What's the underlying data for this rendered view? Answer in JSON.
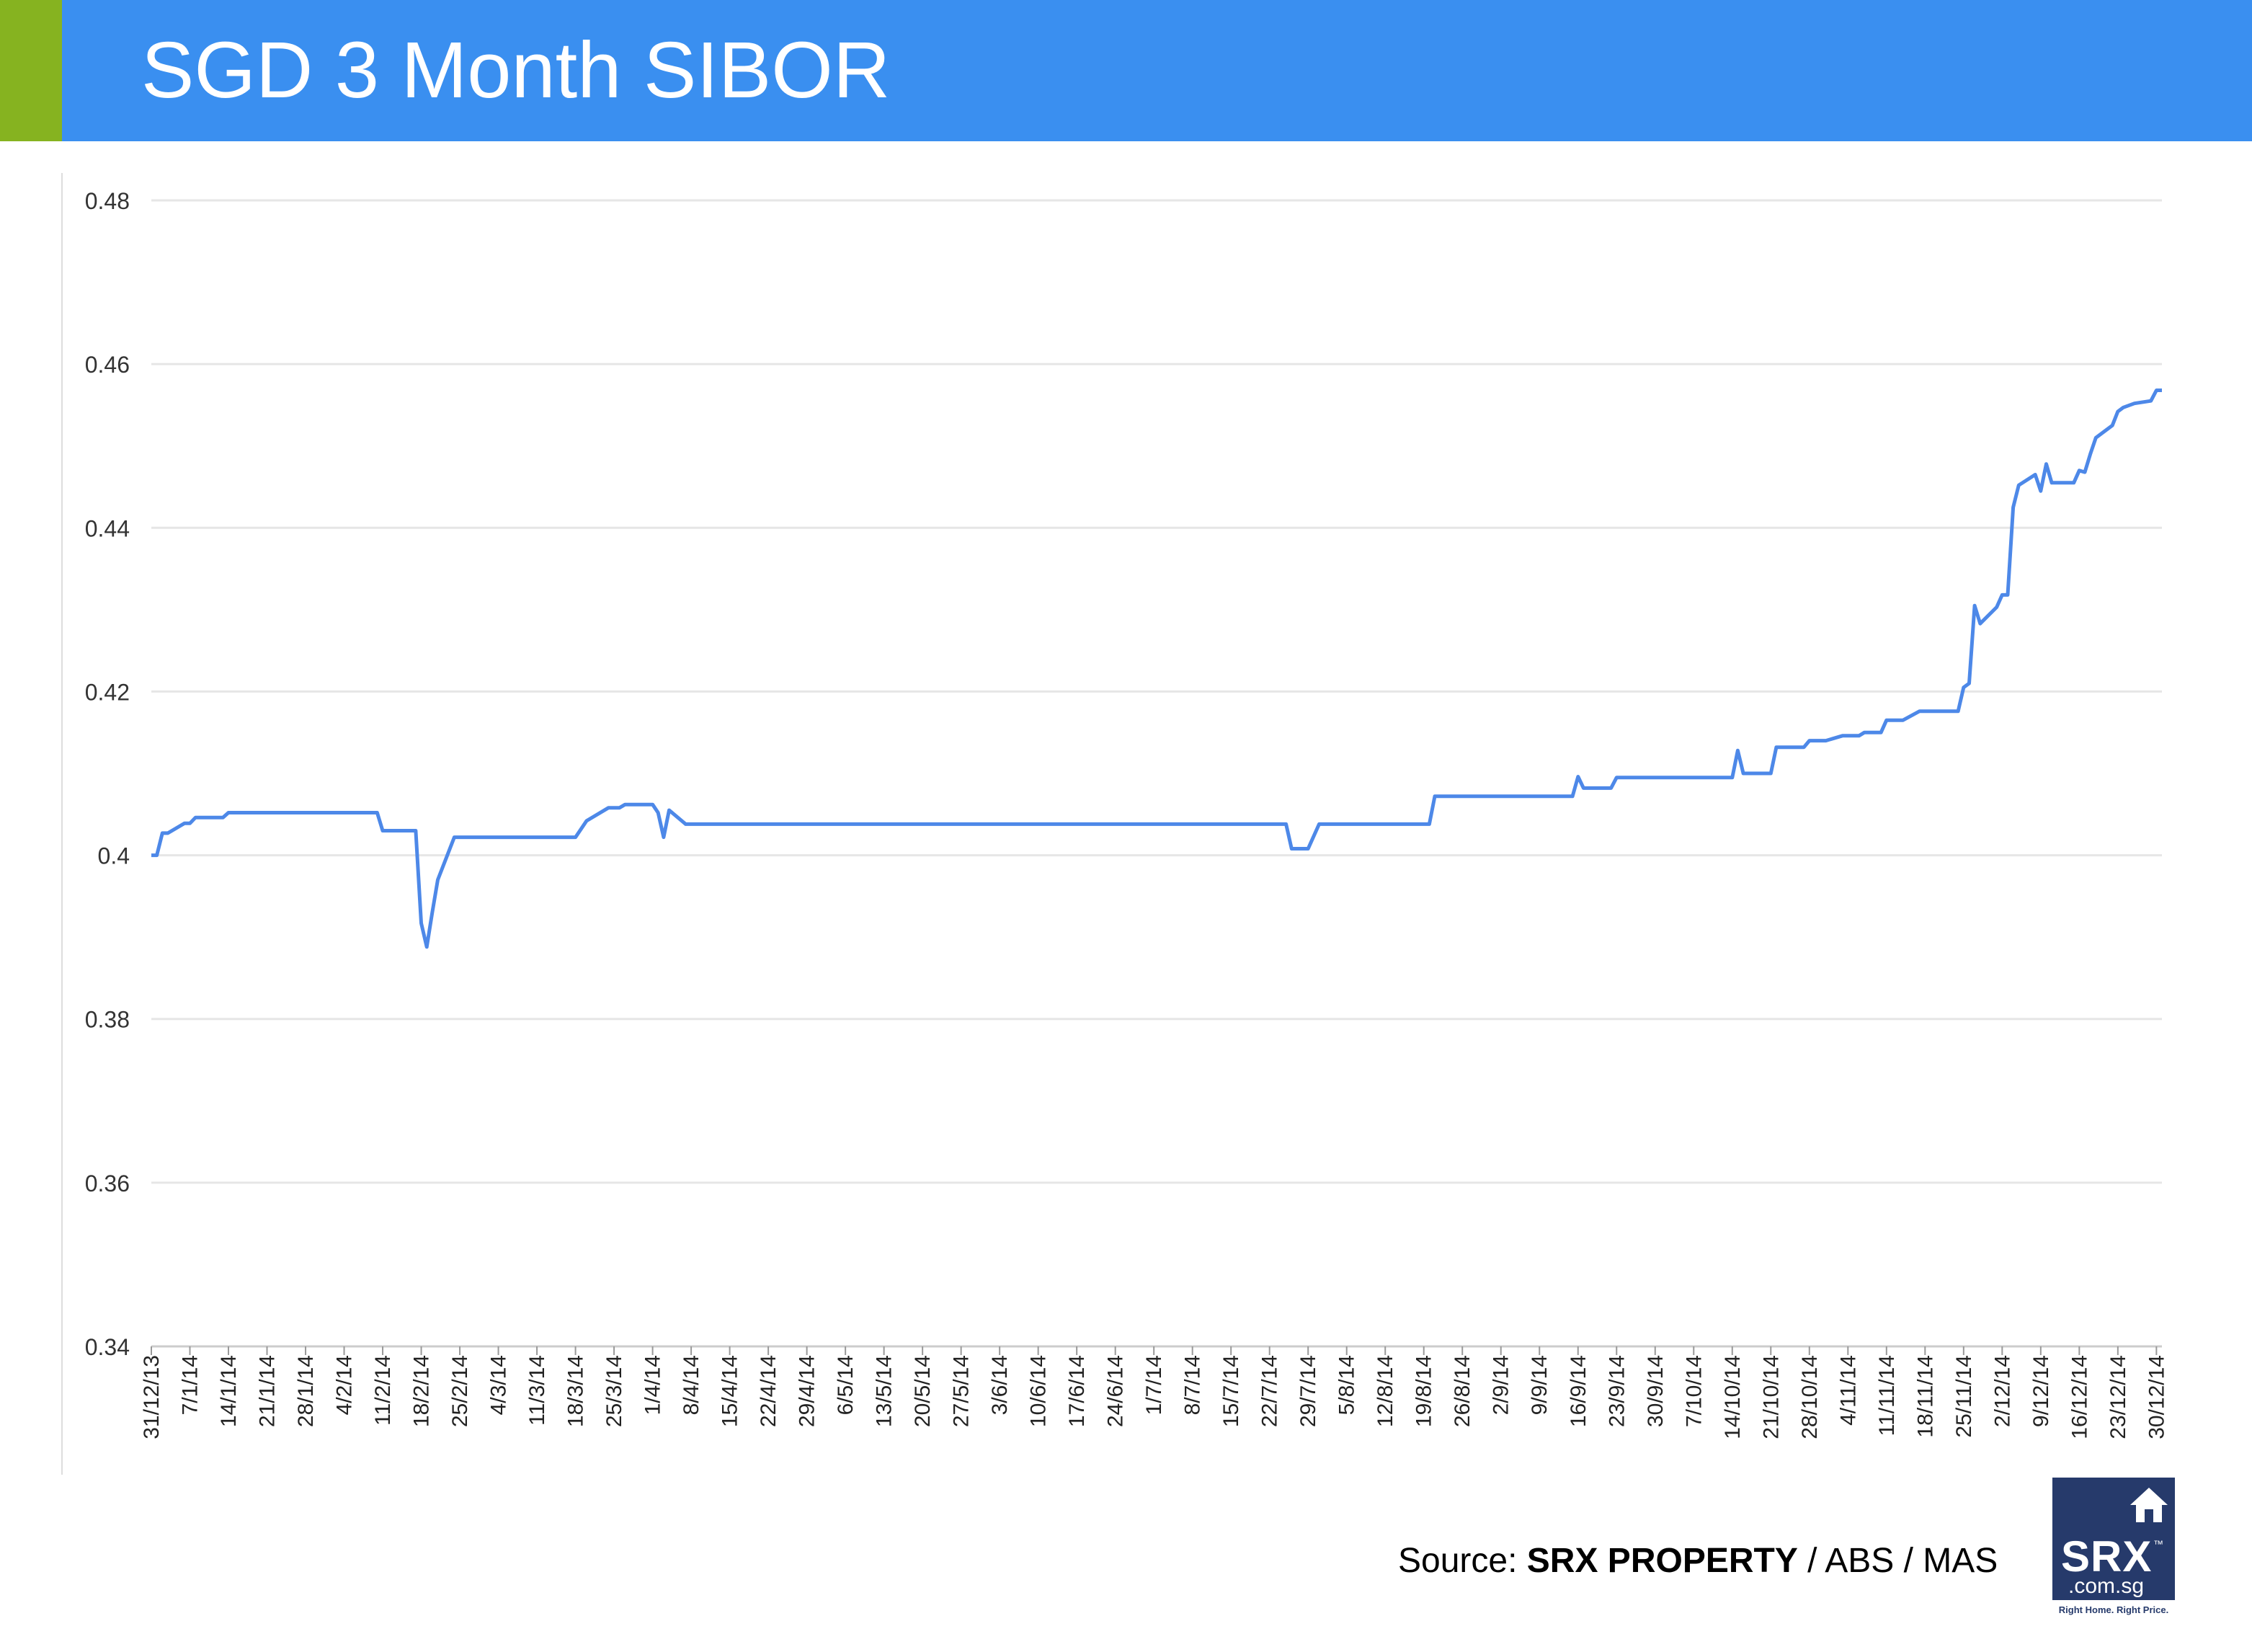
{
  "header": {
    "title": "SGD 3 Month SIBOR"
  },
  "source": {
    "prefix": "Source: ",
    "brand": "SRX PROPERTY",
    "rest": " / ABS / MAS"
  },
  "logo": {
    "brand": "SRX",
    "trademark": "™",
    "domain": ".com.sg",
    "tagline": "Right Home. Right Price.",
    "icon": "house-icon"
  },
  "colors": {
    "header": "#3a8ff0",
    "accent": "#86b320",
    "line": "#4d88e8",
    "grid": "#e6e6e6",
    "logo": "#263a6b"
  },
  "chart_data": {
    "type": "line",
    "title": "",
    "xlabel": "",
    "ylabel": "",
    "ylim": [
      0.34,
      0.48
    ],
    "y_ticks": [
      "0.34",
      "0.36",
      "0.38",
      "0.4",
      "0.42",
      "0.44",
      "0.46",
      "0.48"
    ],
    "grid": true,
    "legend": "none",
    "x_range": [
      "31/12/13",
      "31/12/14"
    ],
    "x_ticks": [
      "31/12/13",
      "7/1/14",
      "14/1/14",
      "21/1/14",
      "28/1/14",
      "4/2/14",
      "11/2/14",
      "18/2/14",
      "25/2/14",
      "4/3/14",
      "11/3/14",
      "18/3/14",
      "25/3/14",
      "1/4/14",
      "8/4/14",
      "15/4/14",
      "22/4/14",
      "29/4/14",
      "6/5/14",
      "13/5/14",
      "20/5/14",
      "27/5/14",
      "3/6/14",
      "10/6/14",
      "17/6/14",
      "24/6/14",
      "1/7/14",
      "8/7/14",
      "15/7/14",
      "22/7/14",
      "29/7/14",
      "5/8/14",
      "12/8/14",
      "19/8/14",
      "26/8/14",
      "2/9/14",
      "9/9/14",
      "16/9/14",
      "23/9/14",
      "30/9/14",
      "7/10/14",
      "14/10/14",
      "21/10/14",
      "28/10/14",
      "4/11/14",
      "11/11/14",
      "18/11/14",
      "25/11/14",
      "2/12/14",
      "9/12/14",
      "16/12/14",
      "23/12/14",
      "30/12/14"
    ],
    "series": [
      {
        "name": "",
        "points": [
          [
            "31/12/13",
            0.4
          ],
          [
            "1/1/14",
            0.4
          ],
          [
            "2/1/14",
            0.4027
          ],
          [
            "3/1/14",
            0.4027
          ],
          [
            "6/1/14",
            0.4039
          ],
          [
            "7/1/14",
            0.4039
          ],
          [
            "8/1/14",
            0.4046
          ],
          [
            "13/1/14",
            0.4046
          ],
          [
            "14/1/14",
            0.4052
          ],
          [
            "10/2/14",
            0.4052
          ],
          [
            "11/2/14",
            0.403
          ],
          [
            "17/2/14",
            0.403
          ],
          [
            "18/2/14",
            0.3917
          ],
          [
            "19/2/14",
            0.3888
          ],
          [
            "20/2/14",
            0.393
          ],
          [
            "21/2/14",
            0.397
          ],
          [
            "24/2/14",
            0.4022
          ],
          [
            "18/3/14",
            0.4022
          ],
          [
            "20/3/14",
            0.4042
          ],
          [
            "24/3/14",
            0.4058
          ],
          [
            "26/3/14",
            0.4058
          ],
          [
            "27/3/14",
            0.4062
          ],
          [
            "1/4/14",
            0.4062
          ],
          [
            "2/4/14",
            0.4052
          ],
          [
            "3/4/14",
            0.4022
          ],
          [
            "4/4/14",
            0.4055
          ],
          [
            "7/4/14",
            0.4038
          ],
          [
            "25/7/14",
            0.4038
          ],
          [
            "26/7/14",
            0.4008
          ],
          [
            "29/7/14",
            0.4008
          ],
          [
            "31/7/14",
            0.4038
          ],
          [
            "20/8/14",
            0.4038
          ],
          [
            "21/8/14",
            0.4072
          ],
          [
            "15/9/14",
            0.4072
          ],
          [
            "16/9/14",
            0.4096
          ],
          [
            "17/9/14",
            0.4082
          ],
          [
            "22/9/14",
            0.4082
          ],
          [
            "23/9/14",
            0.4095
          ],
          [
            "14/10/14",
            0.4095
          ],
          [
            "15/10/14",
            0.4128
          ],
          [
            "16/10/14",
            0.41
          ],
          [
            "21/10/14",
            0.41
          ],
          [
            "22/10/14",
            0.4132
          ],
          [
            "27/10/14",
            0.4132
          ],
          [
            "28/10/14",
            0.414
          ],
          [
            "31/10/14",
            0.414
          ],
          [
            "3/11/14",
            0.4146
          ],
          [
            "6/11/14",
            0.4146
          ],
          [
            "7/11/14",
            0.415
          ],
          [
            "10/11/14",
            0.415
          ],
          [
            "11/11/14",
            0.4165
          ],
          [
            "14/11/14",
            0.4165
          ],
          [
            "17/11/14",
            0.4176
          ],
          [
            "24/11/14",
            0.4176
          ],
          [
            "25/11/14",
            0.4205
          ],
          [
            "26/11/14",
            0.421
          ],
          [
            "27/11/14",
            0.4305
          ],
          [
            "28/11/14",
            0.4283
          ],
          [
            "1/12/14",
            0.4303
          ],
          [
            "2/12/14",
            0.4318
          ],
          [
            "3/12/14",
            0.4318
          ],
          [
            "4/12/14",
            0.4425
          ],
          [
            "5/12/14",
            0.4452
          ],
          [
            "8/12/14",
            0.4465
          ],
          [
            "9/12/14",
            0.4445
          ],
          [
            "10/12/14",
            0.4478
          ],
          [
            "11/12/14",
            0.4455
          ],
          [
            "15/12/14",
            0.4455
          ],
          [
            "16/12/14",
            0.447
          ],
          [
            "17/12/14",
            0.4468
          ],
          [
            "18/12/14",
            0.449
          ],
          [
            "19/12/14",
            0.451
          ],
          [
            "22/12/14",
            0.4525
          ],
          [
            "23/12/14",
            0.4542
          ],
          [
            "24/12/14",
            0.4547
          ],
          [
            "26/12/14",
            0.4552
          ],
          [
            "29/12/14",
            0.4555
          ],
          [
            "30/12/14",
            0.4568
          ],
          [
            "31/12/14",
            0.4568
          ]
        ]
      }
    ]
  }
}
